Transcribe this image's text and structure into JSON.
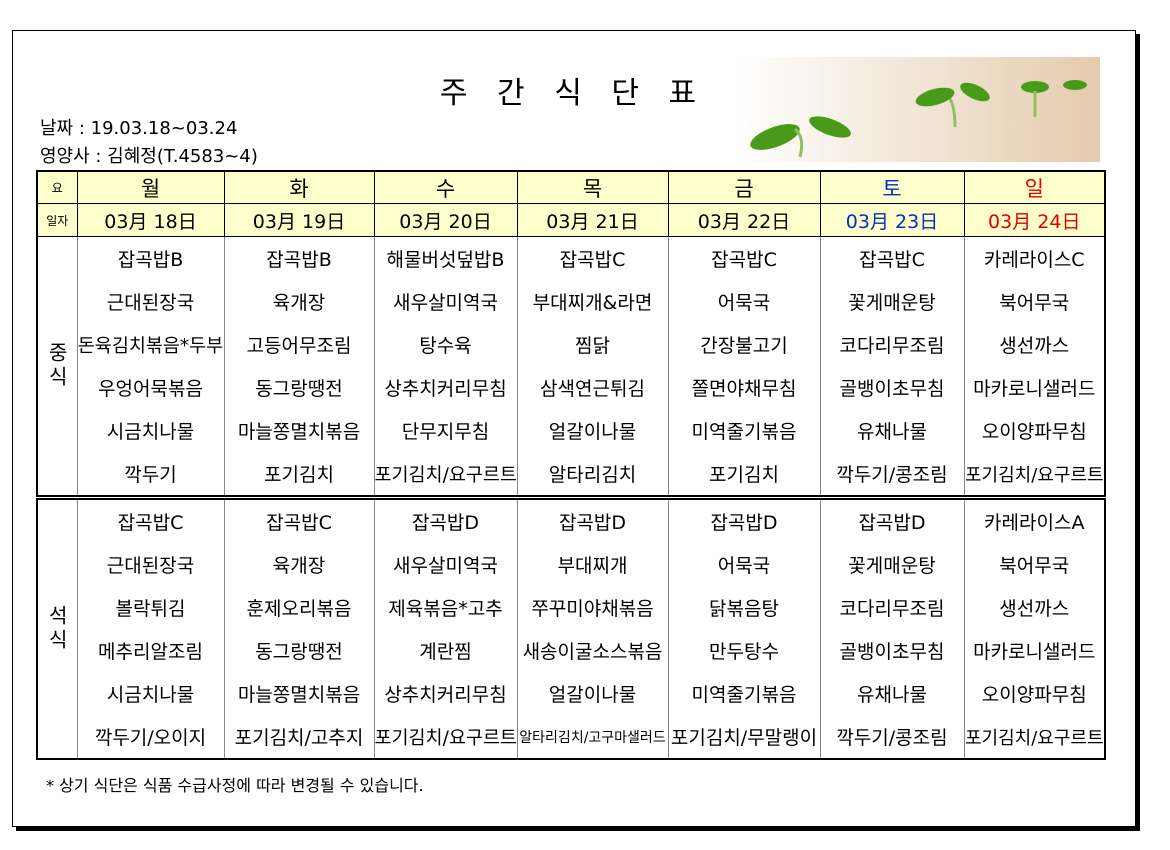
{
  "header": {
    "title": "주 간 식 단 표",
    "date": "날짜 : 19.03.18~03.24",
    "dietitian": "영양사 : 김혜정(T.4583~4)"
  },
  "table": {
    "day_label": "요",
    "date_label": "일자",
    "days": [
      "월",
      "화",
      "수",
      "목",
      "금",
      "토",
      "일"
    ],
    "dates": [
      "03月 18日",
      "03月 19日",
      "03月 20日",
      "03月 21日",
      "03月 22日",
      "03月 23日",
      "03月 24日"
    ],
    "meals": [
      {
        "label": "중식",
        "rows": [
          [
            "잡곡밥B",
            "잡곡밥B",
            "해물버섯덮밥B",
            "잡곡밥C",
            "잡곡밥C",
            "잡곡밥C",
            "카레라이스C"
          ],
          [
            "근대된장국",
            "육개장",
            "새우살미역국",
            "부대찌개&라면",
            "어묵국",
            "꽃게매운탕",
            "북어무국"
          ],
          [
            "돈육김치볶음*두부",
            "고등어무조림",
            "탕수육",
            "찜닭",
            "간장불고기",
            "코다리무조림",
            "생선까스"
          ],
          [
            "우엉어묵볶음",
            "동그랑땡전",
            "상추치커리무침",
            "삼색연근튀김",
            "쫄면야채무침",
            "골뱅이초무침",
            "마카로니샐러드"
          ],
          [
            "시금치나물",
            "마늘쫑멸치볶음",
            "단무지무침",
            "얼갈이나물",
            "미역줄기볶음",
            "유채나물",
            "오이양파무침"
          ],
          [
            "깍두기",
            "포기김치",
            "포기김치/요구르트",
            "알타리김치",
            "포기김치",
            "깍두기/콩조림",
            "포기김치/요구르트"
          ]
        ]
      },
      {
        "label": "석식",
        "rows": [
          [
            "잡곡밥C",
            "잡곡밥C",
            "잡곡밥D",
            "잡곡밥D",
            "잡곡밥D",
            "잡곡밥D",
            "카레라이스A"
          ],
          [
            "근대된장국",
            "육개장",
            "새우살미역국",
            "부대찌개",
            "어묵국",
            "꽃게매운탕",
            "북어무국"
          ],
          [
            "볼락튀김",
            "훈제오리볶음",
            "제육볶음*고추",
            "쭈꾸미야채볶음",
            "닭볶음탕",
            "코다리무조림",
            "생선까스"
          ],
          [
            "메추리알조림",
            "동그랑땡전",
            "계란찜",
            "새송이굴소스볶음",
            "만두탕수",
            "골뱅이초무침",
            "마카로니샐러드"
          ],
          [
            "시금치나물",
            "마늘쫑멸치볶음",
            "상추치커리무침",
            "얼갈이나물",
            "미역줄기볶음",
            "유채나물",
            "오이양파무침"
          ],
          [
            "깍두기/오이지",
            "포기김치/고추지",
            "포기김치/요구르트",
            "알타리김치/고구마샐러드",
            "포기김치/무말랭이",
            "깍두기/콩조림",
            "포기김치/요구르트"
          ]
        ]
      }
    ]
  },
  "footer": {
    "note": "* 상기 식단은 식품 수급사정에 따라 변경될 수 있습니다."
  }
}
